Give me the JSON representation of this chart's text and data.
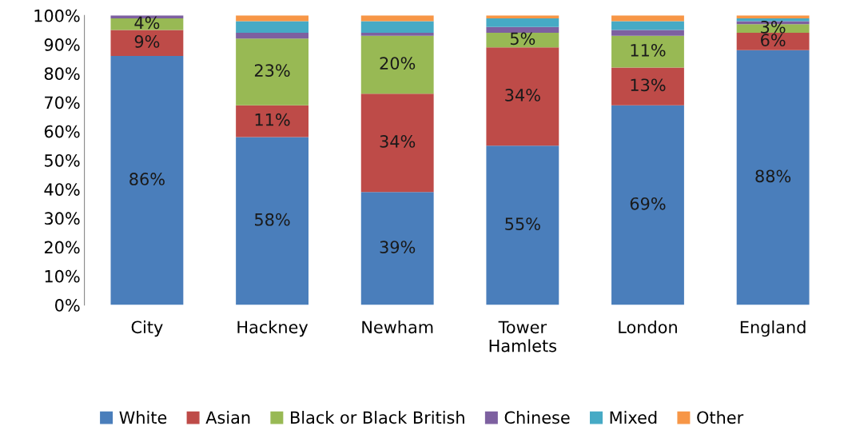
{
  "chart_data": {
    "type": "bar",
    "stacked": true,
    "categories": [
      "City",
      "Hackney",
      "Newham",
      "Tower\nHamlets",
      "London",
      "England"
    ],
    "series": [
      {
        "name": "White",
        "color": "#4a7ebb",
        "values": [
          86,
          58,
          39,
          55,
          69,
          88
        ],
        "value_labels": [
          "86%",
          "58%",
          "39%",
          "55%",
          "69%",
          "88%"
        ]
      },
      {
        "name": "Asian",
        "color": "#be4b48",
        "values": [
          9,
          11,
          34,
          34,
          13,
          6
        ],
        "value_labels": [
          "9%",
          "11%",
          "34%",
          "34%",
          "13%",
          "6%"
        ]
      },
      {
        "name": "Black or Black British",
        "color": "#98b954",
        "values": [
          4,
          23,
          20,
          5,
          11,
          3
        ],
        "value_labels": [
          "4%",
          "23%",
          "20%",
          "5%",
          "11%",
          "3%"
        ]
      },
      {
        "name": "Chinese",
        "color": "#7d60a0",
        "values": [
          1,
          2,
          1,
          2,
          2,
          1
        ]
      },
      {
        "name": "Mixed",
        "color": "#46aac5",
        "values": [
          0,
          4,
          4,
          3,
          3,
          1
        ]
      },
      {
        "name": "Other",
        "color": "#f79646",
        "values": [
          0,
          2,
          2,
          1,
          2,
          1
        ]
      }
    ],
    "ylim": [
      0,
      100
    ],
    "yticks": [
      {
        "value": 0,
        "label": "0%"
      },
      {
        "value": 10,
        "label": "10%"
      },
      {
        "value": 20,
        "label": "20%"
      },
      {
        "value": 30,
        "label": "30%"
      },
      {
        "value": 40,
        "label": "40%"
      },
      {
        "value": 50,
        "label": "50%"
      },
      {
        "value": 60,
        "label": "60%"
      },
      {
        "value": 70,
        "label": "70%"
      },
      {
        "value": 80,
        "label": "80%"
      },
      {
        "value": 90,
        "label": "90%"
      },
      {
        "value": 100,
        "label": "100%"
      }
    ],
    "grid": false,
    "legend": "bottom"
  }
}
